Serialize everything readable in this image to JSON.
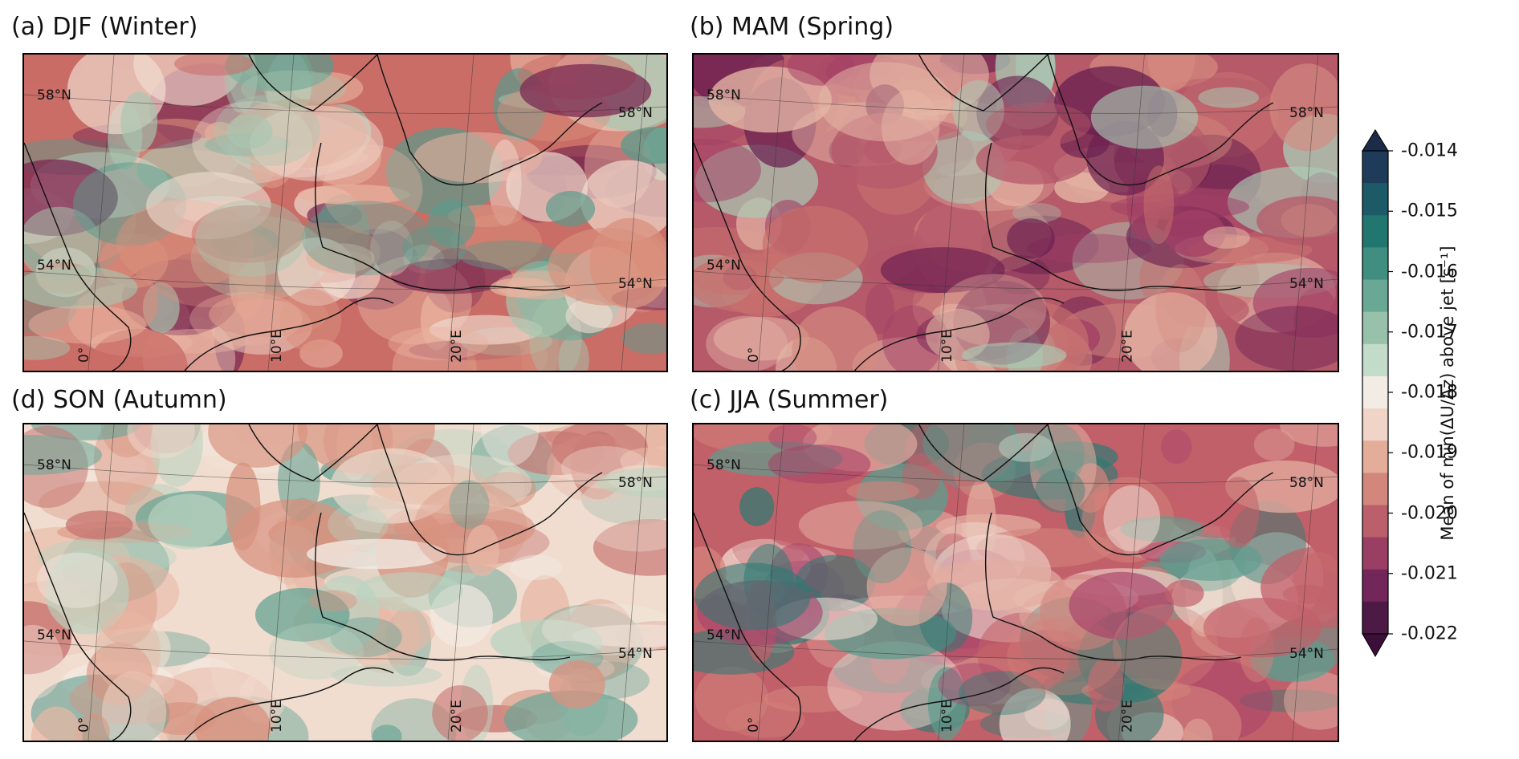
{
  "panels": [
    {
      "id": "a",
      "title": "(a) DJF (Winter)",
      "lat_labels": [
        "58°N",
        "54°N"
      ],
      "lon_labels": [
        "0°",
        "10°E",
        "20°E"
      ],
      "palette": [
        "#c96d66",
        "#d9907d",
        "#e9b3a0",
        "#f2ded2",
        "#a7c7b0",
        "#5a9b8c",
        "#7a2a52"
      ]
    },
    {
      "id": "b",
      "title": "(b) MAM (Spring)",
      "lat_labels": [
        "58°N",
        "54°N"
      ],
      "lon_labels": [
        "0°",
        "10°E",
        "20°E"
      ],
      "palette": [
        "#b65a6a",
        "#c8716e",
        "#a23f66",
        "#d48a7f",
        "#e6b7a6",
        "#6a1f4f",
        "#aacbb5"
      ]
    },
    {
      "id": "d",
      "title": "(d) SON (Autumn)",
      "lat_labels": [
        "58°N",
        "54°N"
      ],
      "lon_labels": [
        "0°",
        "10°E",
        "20°E"
      ],
      "palette": [
        "#f0ddd0",
        "#e8b6a4",
        "#d8927f",
        "#b9d3c0",
        "#6aa596",
        "#f4ebe3",
        "#c7736f"
      ]
    },
    {
      "id": "c",
      "title": "(c) JJA (Summer)",
      "lat_labels": [
        "58°N",
        "54°N"
      ],
      "lon_labels": [
        "0°",
        "10°E",
        "20°E"
      ],
      "palette": [
        "#c2606a",
        "#d3837b",
        "#a8426a",
        "#e3ada0",
        "#5d9c8d",
        "#2d7a73",
        "#f2dfd4"
      ]
    }
  ],
  "colorbar": {
    "label": "Mean of min(ΔU/Δz) above jet [s⁻¹]",
    "ticks": [
      "-0.014",
      "-0.015",
      "-0.016",
      "-0.017",
      "-0.018",
      "-0.019",
      "-0.020",
      "-0.021",
      "-0.022"
    ],
    "colors": [
      "#1f3b5a",
      "#1c5a67",
      "#21766f",
      "#3f8e7f",
      "#6aa896",
      "#97c1ab",
      "#c3dbc9",
      "#f2ece4",
      "#f0d4c8",
      "#e4ad9a",
      "#d3877c",
      "#bb5f6a",
      "#9a3e64",
      "#722659",
      "#4d1945"
    ],
    "extend_low": "#3b0f3a",
    "extend_high": "#1b2b48"
  }
}
